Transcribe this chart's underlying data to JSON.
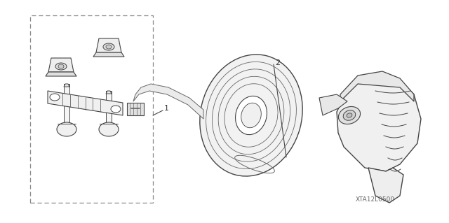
{
  "bg_color": "#ffffff",
  "fig_width": 6.4,
  "fig_height": 3.19,
  "dpi": 100,
  "part_number": "XTA12L0500",
  "label_1": "1",
  "label_2": "2"
}
